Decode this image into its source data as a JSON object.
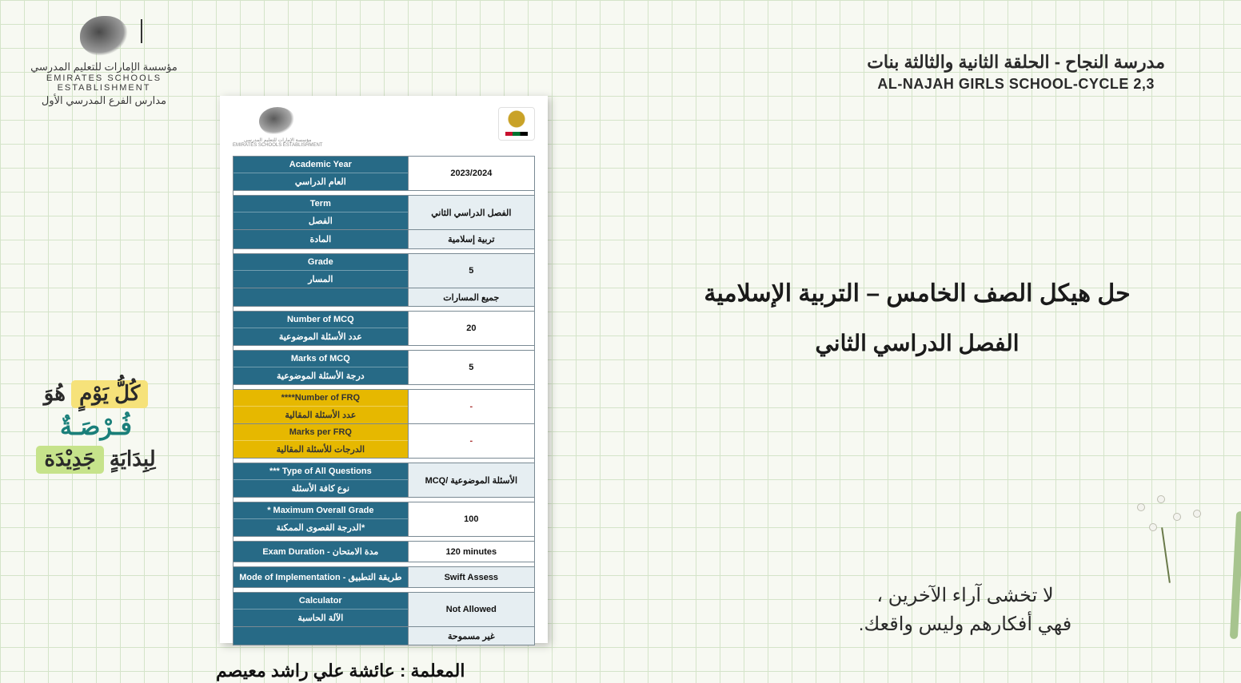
{
  "establishment": {
    "ar": "مؤسسة الإمارات للتعليم المدرسي",
    "en": "EMIRATES SCHOOLS ESTABLISHMENT",
    "sub_ar": "مدارس الفرع المدرسي الأول"
  },
  "school": {
    "ar": "مدرسة النجاح - الحلقة الثانية والثالثة بنات",
    "en": "AL-NAJAH GIRLS SCHOOL-CYCLE 2,3"
  },
  "main": {
    "line1": "حل هيكل الصف الخامس – التربية الإسلامية",
    "line2": "الفصل الدراسي الثاني"
  },
  "motivation": {
    "row1_hl": "كُلُّ يَوْمٍ",
    "row1_rest": "هُوَ",
    "row2": "فُـرْصَـةٌ",
    "row3_rest": "لِبِدَايَةٍ",
    "row3_hl": "جَدِيْدَة"
  },
  "teacher_line": "المعلمة : عائشة علي راشد معيصم",
  "bottom_quote": {
    "l1": "لا تخشى آراء الآخرين ،",
    "l2": "فهي أفكارهم وليس واقعك."
  },
  "spec_table": {
    "colors": {
      "header_bg": "#276a86",
      "header_fg": "#ffffff",
      "alt_header_bg": "#e6b800",
      "value_bg": "#ffffff",
      "value_alt_bg": "#e6eef2",
      "border": "#7a8a94"
    },
    "rows": [
      {
        "en": "Academic Year",
        "ar": "العام الدراسي",
        "value": "2023/2024",
        "value_bg": "white"
      },
      {
        "en": "Term",
        "ar": "الفصل",
        "value": "الفصل الدراسي الثاني",
        "value_bg": "lt",
        "extra": {
          "ar": "المادة",
          "value": "تربية إسلامية",
          "value_bg": "lt"
        }
      },
      {
        "en": "Grade",
        "ar": "المسار",
        "value": "5",
        "value_bg": "lt",
        "extra": {
          "value": "جميع المسارات",
          "value_bg": "lt"
        }
      },
      {
        "en": "Number of MCQ",
        "ar": "عدد الأسئلة الموضوعية",
        "value": "20",
        "value_bg": "white"
      },
      {
        "en": "Marks of MCQ",
        "ar": "درجة الأسئلة الموضوعية",
        "value": "5",
        "value_bg": "white"
      },
      {
        "en": "****Number of FRQ",
        "ar": "عدد الأسئلة المقالية",
        "value": "-",
        "value_bg": "white",
        "yellow": true
      },
      {
        "en": "Marks per FRQ",
        "ar": "الدرجات للأسئلة المقالية",
        "value": "-",
        "value_bg": "white",
        "yellow": true,
        "nosep": true
      },
      {
        "en": "*** Type of All Questions",
        "ar": "نوع كافة الأسئلة",
        "value": "الأسئلة الموضوعية /MCQ",
        "value_bg": "lt"
      },
      {
        "en": "* Maximum Overall Grade",
        "ar": "*الدرجة القصوى الممكنة",
        "value": "100",
        "value_bg": "white"
      },
      {
        "en": "Exam Duration - مدة الامتحان",
        "value": "120 minutes",
        "value_bg": "white",
        "single": true
      },
      {
        "en": "Mode of Implementation - طريقة التطبيق",
        "value": "Swift Assess",
        "value_bg": "lt",
        "single": true
      },
      {
        "en": "Calculator",
        "ar": "الآلة الحاسبة",
        "value": "Not Allowed",
        "value_bg": "lt",
        "extra": {
          "value": "غير مسموحة",
          "value_bg": "lt"
        }
      }
    ]
  }
}
